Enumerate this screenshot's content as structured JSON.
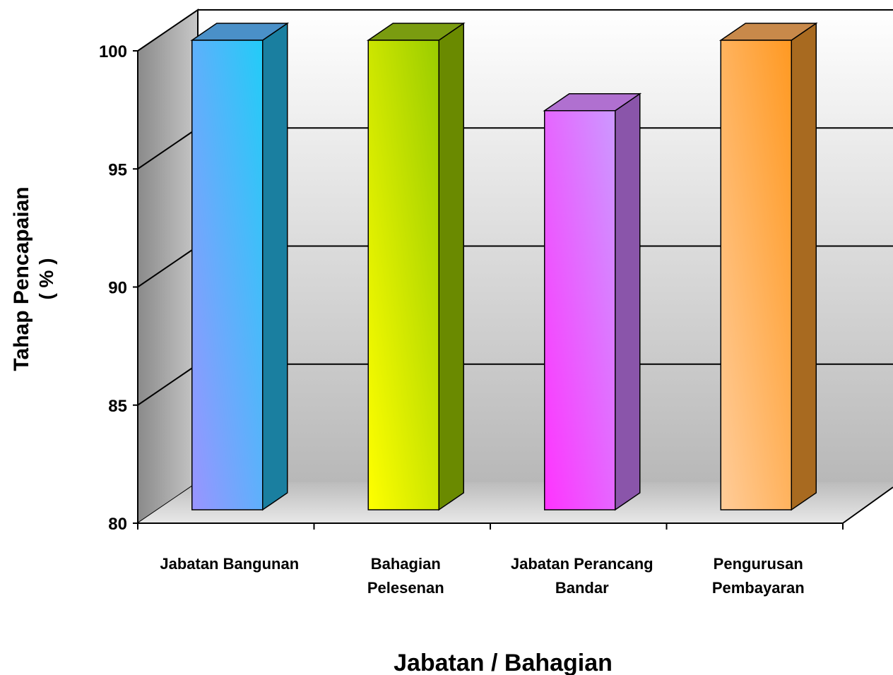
{
  "chart_data": {
    "type": "bar",
    "categories": [
      [
        "Jabatan Bangunan"
      ],
      [
        "Bahagian",
        "Pelesenan"
      ],
      [
        "Jabatan Perancang",
        "Bandar"
      ],
      [
        "Pengurusan",
        "Pembayaran"
      ]
    ],
    "values": [
      100,
      100,
      97,
      100
    ],
    "ylabel": [
      "Tahap Pencapaian",
      "( % )"
    ],
    "xlabel": "Jabatan / Bahagian",
    "ylim": [
      80,
      100
    ],
    "yticks": [
      80,
      85,
      90,
      95,
      100
    ],
    "grid": true,
    "legend": "none",
    "colors": {
      "bars": [
        {
          "front_start": "#9a94ff",
          "front_end": "#22ccf7",
          "side": "#1a7fa0",
          "top": "#4a90c8"
        },
        {
          "front_start": "#ffff00",
          "front_end": "#9acc00",
          "side": "#6a8a00",
          "top": "#7a9c10"
        },
        {
          "front_start": "#ff33ff",
          "front_end": "#cc99ff",
          "side": "#8a55aa",
          "top": "#b070d0"
        },
        {
          "front_start": "#ffcc99",
          "front_end": "#ff9922",
          "side": "#a86a20",
          "top": "#c8894a"
        }
      ]
    }
  }
}
